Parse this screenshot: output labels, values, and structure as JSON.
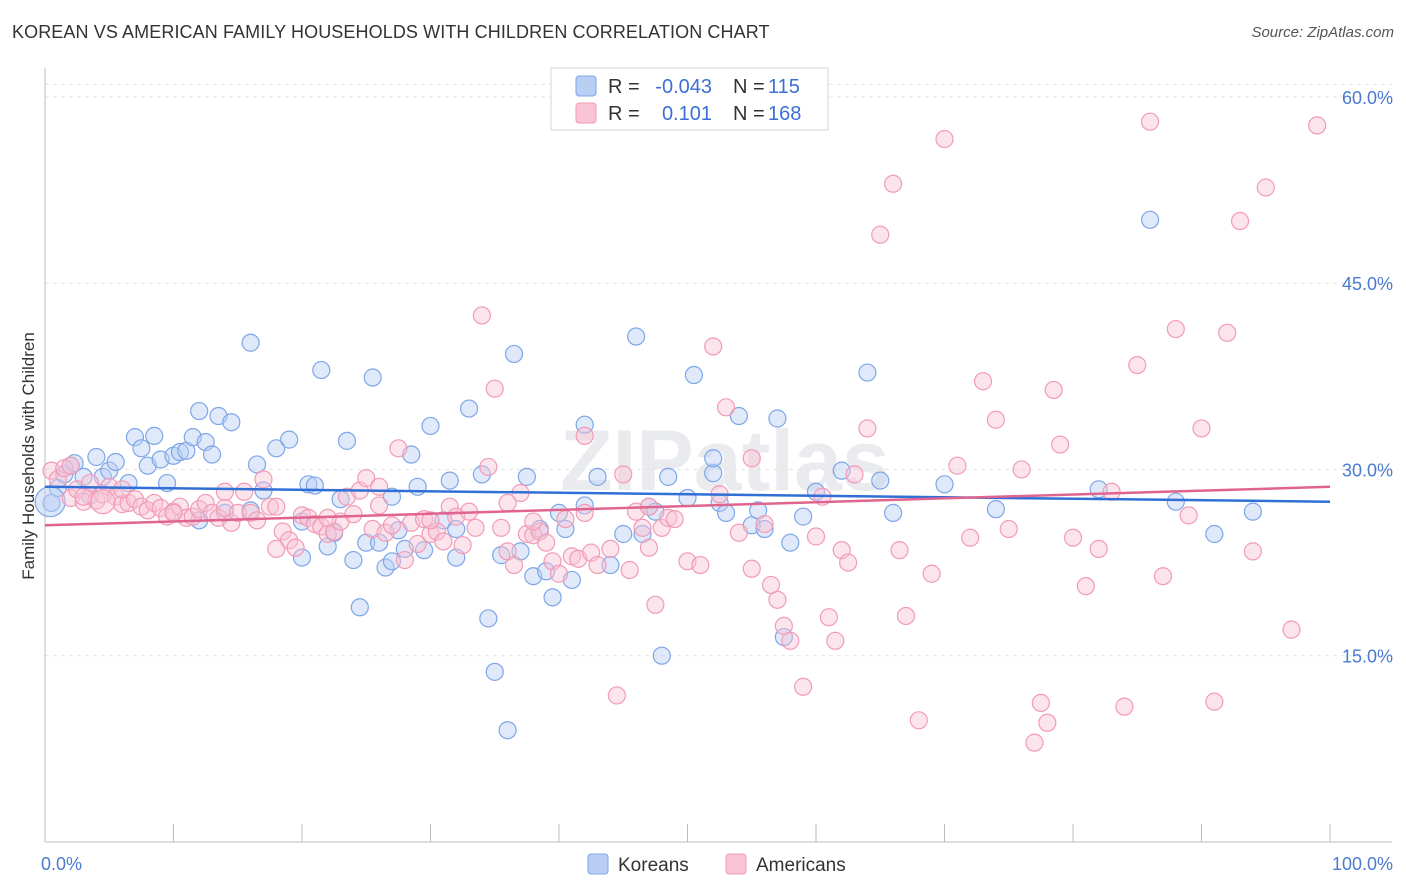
{
  "header": {
    "title": "KOREAN VS AMERICAN FAMILY HOUSEHOLDS WITH CHILDREN CORRELATION CHART",
    "source": "Source: ZipAtlas.com"
  },
  "watermark": "ZIPatlas",
  "legend_top": {
    "rows": [
      {
        "r_label": "R =",
        "r_value": "-0.043",
        "n_label": "N =",
        "n_value": "115",
        "color": "#7ea6e8"
      },
      {
        "r_label": "R =",
        "r_value": "0.101",
        "n_label": "N =",
        "n_value": "168",
        "color": "#f29bb6"
      }
    ]
  },
  "chart_data": {
    "type": "scatter",
    "xlabel": "",
    "ylabel": "Family Households with Children",
    "xlim": [
      0,
      100
    ],
    "ylim": [
      0,
      62
    ],
    "x_tick_labels": [
      "0.0%",
      "100.0%"
    ],
    "y_ticks": [
      15,
      30,
      45,
      60
    ],
    "y_tick_labels": [
      "15.0%",
      "30.0%",
      "45.0%",
      "60.0%"
    ],
    "grid": true,
    "legend_position": "bottom-center",
    "series": [
      {
        "name": "Koreans",
        "color": "#7ea6e8",
        "fill": "#b8cef3",
        "trend": {
          "x": [
            0,
            100
          ],
          "y": [
            28.6,
            27.4
          ],
          "color": "#2f6fd6"
        },
        "points": [
          [
            0.5,
            27.3
          ],
          [
            1,
            28.5
          ],
          [
            1.5,
            29.6
          ],
          [
            2,
            30.3
          ],
          [
            2.3,
            30.5
          ],
          [
            3,
            29.4
          ],
          [
            3.5,
            27.9
          ],
          [
            4,
            31.0
          ],
          [
            4.5,
            29.4
          ],
          [
            5,
            29.9
          ],
          [
            5.5,
            30.6
          ],
          [
            6.5,
            28.9
          ],
          [
            7,
            32.6
          ],
          [
            7.5,
            31.7
          ],
          [
            8,
            30.3
          ],
          [
            8.5,
            32.7
          ],
          [
            9,
            30.8
          ],
          [
            9.5,
            28.9
          ],
          [
            10,
            31.1
          ],
          [
            10.5,
            31.4
          ],
          [
            11,
            31.5
          ],
          [
            11.5,
            32.6
          ],
          [
            12,
            34.7
          ],
          [
            12.5,
            32.2
          ],
          [
            13,
            31.2
          ],
          [
            13.5,
            34.3
          ],
          [
            14,
            26.5
          ],
          [
            14.5,
            33.8
          ],
          [
            16,
            40.2
          ],
          [
            16.5,
            30.4
          ],
          [
            17,
            28.3
          ],
          [
            18,
            31.7
          ],
          [
            19,
            32.4
          ],
          [
            20,
            25.8
          ],
          [
            20,
            22.9
          ],
          [
            20.5,
            28.8
          ],
          [
            21,
            28.7
          ],
          [
            21.5,
            38.0
          ],
          [
            22,
            23.8
          ],
          [
            22.5,
            24.9
          ],
          [
            23,
            27.6
          ],
          [
            23.5,
            32.3
          ],
          [
            24,
            22.7
          ],
          [
            24.5,
            18.9
          ],
          [
            25,
            24.1
          ],
          [
            25.5,
            37.4
          ],
          [
            26,
            24.1
          ],
          [
            26.5,
            22.1
          ],
          [
            27,
            22.6
          ],
          [
            27.5,
            25.1
          ],
          [
            28,
            23.6
          ],
          [
            28.5,
            31.2
          ],
          [
            29,
            28.6
          ],
          [
            29.5,
            23.5
          ],
          [
            30,
            33.5
          ],
          [
            31,
            25.9
          ],
          [
            31.5,
            29.1
          ],
          [
            32,
            25.2
          ],
          [
            33,
            34.9
          ],
          [
            34,
            29.6
          ],
          [
            34.5,
            18.0
          ],
          [
            35,
            13.7
          ],
          [
            35.5,
            23.1
          ],
          [
            36,
            9.0
          ],
          [
            36.5,
            39.3
          ],
          [
            37,
            23.4
          ],
          [
            37.5,
            29.4
          ],
          [
            38,
            21.4
          ],
          [
            38.5,
            25.2
          ],
          [
            39,
            21.8
          ],
          [
            39.5,
            19.7
          ],
          [
            40,
            26.5
          ],
          [
            40.5,
            25.2
          ],
          [
            41,
            21.1
          ],
          [
            42,
            33.6
          ],
          [
            43,
            29.4
          ],
          [
            44,
            22.3
          ],
          [
            45,
            24.8
          ],
          [
            46,
            40.7
          ],
          [
            46.5,
            24.8
          ],
          [
            47,
            27.0
          ],
          [
            47.5,
            26.6
          ],
          [
            48,
            15.0
          ],
          [
            48.5,
            29.4
          ],
          [
            50,
            27.7
          ],
          [
            50.5,
            37.6
          ],
          [
            52,
            29.7
          ],
          [
            52.5,
            27.3
          ],
          [
            53,
            26.5
          ],
          [
            54,
            34.3
          ],
          [
            55,
            25.5
          ],
          [
            55.5,
            26.7
          ],
          [
            56,
            25.2
          ],
          [
            57,
            34.1
          ],
          [
            57.5,
            16.5
          ],
          [
            58,
            24.1
          ],
          [
            59,
            26.2
          ],
          [
            60,
            28.2
          ],
          [
            62,
            29.9
          ],
          [
            64,
            37.8
          ],
          [
            65,
            29.1
          ],
          [
            66,
            26.5
          ],
          [
            70,
            28.8
          ],
          [
            74,
            26.8
          ],
          [
            82,
            28.4
          ],
          [
            86,
            50.1
          ],
          [
            91,
            24.8
          ],
          [
            94,
            26.6
          ],
          [
            88,
            27.4
          ],
          [
            52,
            30.9
          ],
          [
            12,
            25.9
          ],
          [
            32,
            22.9
          ],
          [
            42,
            27.1
          ],
          [
            27,
            27.8
          ],
          [
            16,
            26.7
          ]
        ]
      },
      {
        "name": "Americans",
        "color": "#f29bb6",
        "fill": "#f9c4d5",
        "trend": {
          "x": [
            0,
            100
          ],
          "y": [
            25.5,
            28.6
          ],
          "color": "#e0658e"
        },
        "points": [
          [
            0.5,
            29.9
          ],
          [
            1,
            29.2
          ],
          [
            1.5,
            30.1
          ],
          [
            2,
            27.7
          ],
          [
            2.5,
            28.4
          ],
          [
            3,
            27.4
          ],
          [
            3.5,
            28.9
          ],
          [
            4,
            27.5
          ],
          [
            4.5,
            28.0
          ],
          [
            5,
            28.6
          ],
          [
            5.5,
            27.8
          ],
          [
            6,
            27.2
          ],
          [
            6.5,
            27.3
          ],
          [
            7,
            27.6
          ],
          [
            7.5,
            27.0
          ],
          [
            8,
            26.7
          ],
          [
            8.5,
            27.3
          ],
          [
            9,
            26.9
          ],
          [
            9.5,
            26.2
          ],
          [
            10,
            26.6
          ],
          [
            10.5,
            27.0
          ],
          [
            11,
            26.1
          ],
          [
            11.5,
            26.2
          ],
          [
            12,
            26.8
          ],
          [
            12.5,
            27.3
          ],
          [
            13,
            26.5
          ],
          [
            13.5,
            26.1
          ],
          [
            14,
            26.9
          ],
          [
            14.5,
            25.7
          ],
          [
            15,
            26.5
          ],
          [
            15.5,
            28.2
          ],
          [
            16,
            26.5
          ],
          [
            16.5,
            25.9
          ],
          [
            17,
            29.2
          ],
          [
            17.5,
            27.0
          ],
          [
            18,
            23.6
          ],
          [
            18.5,
            25.0
          ],
          [
            19,
            24.3
          ],
          [
            19.5,
            23.7
          ],
          [
            20,
            26.3
          ],
          [
            20.5,
            26.1
          ],
          [
            21,
            25.6
          ],
          [
            21.5,
            25.4
          ],
          [
            22,
            24.8
          ],
          [
            22.5,
            25.0
          ],
          [
            23,
            25.8
          ],
          [
            23.5,
            27.8
          ],
          [
            24,
            26.4
          ],
          [
            24.5,
            28.3
          ],
          [
            25,
            29.3
          ],
          [
            25.5,
            25.2
          ],
          [
            26,
            27.1
          ],
          [
            26.5,
            24.9
          ],
          [
            27,
            25.5
          ],
          [
            27.5,
            31.7
          ],
          [
            28,
            22.7
          ],
          [
            28.5,
            25.7
          ],
          [
            29,
            24.0
          ],
          [
            29.5,
            26.0
          ],
          [
            30,
            24.8
          ],
          [
            30.5,
            25.0
          ],
          [
            31,
            24.2
          ],
          [
            31.5,
            27.0
          ],
          [
            32,
            26.2
          ],
          [
            32.5,
            23.9
          ],
          [
            33,
            26.6
          ],
          [
            33.5,
            25.3
          ],
          [
            34,
            42.4
          ],
          [
            34.5,
            30.2
          ],
          [
            35,
            36.5
          ],
          [
            35.5,
            25.3
          ],
          [
            36,
            23.4
          ],
          [
            36.5,
            22.3
          ],
          [
            37,
            28.1
          ],
          [
            37.5,
            24.8
          ],
          [
            38,
            24.7
          ],
          [
            38.5,
            25.0
          ],
          [
            39,
            24.1
          ],
          [
            39.5,
            22.6
          ],
          [
            40,
            21.6
          ],
          [
            40.5,
            26.0
          ],
          [
            41,
            23.0
          ],
          [
            41.5,
            22.8
          ],
          [
            42,
            26.5
          ],
          [
            42.5,
            23.3
          ],
          [
            43,
            22.3
          ],
          [
            44,
            23.6
          ],
          [
            44.5,
            11.8
          ],
          [
            45,
            29.6
          ],
          [
            45.5,
            21.9
          ],
          [
            46,
            26.6
          ],
          [
            46.5,
            25.3
          ],
          [
            47,
            23.7
          ],
          [
            47.5,
            19.1
          ],
          [
            48,
            25.3
          ],
          [
            48.5,
            26.1
          ],
          [
            49,
            26.0
          ],
          [
            50,
            22.6
          ],
          [
            51,
            22.3
          ],
          [
            52,
            39.9
          ],
          [
            53,
            35.0
          ],
          [
            54,
            24.9
          ],
          [
            55,
            30.9
          ],
          [
            56,
            25.6
          ],
          [
            57,
            19.5
          ],
          [
            57.5,
            17.4
          ],
          [
            58,
            16.2
          ],
          [
            59,
            12.5
          ],
          [
            60,
            24.6
          ],
          [
            60.5,
            27.8
          ],
          [
            61,
            18.1
          ],
          [
            61.5,
            16.2
          ],
          [
            62,
            23.5
          ],
          [
            63,
            29.6
          ],
          [
            64,
            33.3
          ],
          [
            65,
            48.9
          ],
          [
            66,
            53.0
          ],
          [
            67,
            18.2
          ],
          [
            68,
            9.8
          ],
          [
            69,
            21.6
          ],
          [
            70,
            56.6
          ],
          [
            71,
            30.3
          ],
          [
            72,
            24.5
          ],
          [
            73,
            37.1
          ],
          [
            74,
            34.0
          ],
          [
            75,
            25.2
          ],
          [
            76,
            30.0
          ],
          [
            77,
            8.0
          ],
          [
            77.5,
            11.2
          ],
          [
            78,
            9.6
          ],
          [
            78.5,
            36.4
          ],
          [
            79,
            32.0
          ],
          [
            80,
            24.5
          ],
          [
            81,
            20.6
          ],
          [
            82,
            23.6
          ],
          [
            83,
            28.2
          ],
          [
            84,
            10.9
          ],
          [
            85,
            38.4
          ],
          [
            86,
            58.0
          ],
          [
            87,
            21.4
          ],
          [
            88,
            41.3
          ],
          [
            89,
            26.3
          ],
          [
            90,
            33.3
          ],
          [
            91,
            11.3
          ],
          [
            92,
            41.0
          ],
          [
            93,
            50.0
          ],
          [
            94,
            23.4
          ],
          [
            95,
            52.7
          ],
          [
            97,
            17.1
          ],
          [
            99,
            57.7
          ],
          [
            52.5,
            28.0
          ],
          [
            66.5,
            23.5
          ],
          [
            56.5,
            20.7
          ],
          [
            47,
            27.0
          ],
          [
            42,
            32.7
          ],
          [
            38,
            25.8
          ],
          [
            36,
            27.3
          ],
          [
            30,
            25.9
          ],
          [
            26,
            28.6
          ],
          [
            22,
            26.1
          ],
          [
            18,
            27.0
          ],
          [
            14,
            28.2
          ],
          [
            10,
            26.5
          ],
          [
            6,
            28.4
          ],
          [
            2,
            30.3
          ],
          [
            3,
            27.8
          ],
          [
            55,
            22.0
          ],
          [
            62.5,
            22.5
          ]
        ]
      }
    ]
  }
}
